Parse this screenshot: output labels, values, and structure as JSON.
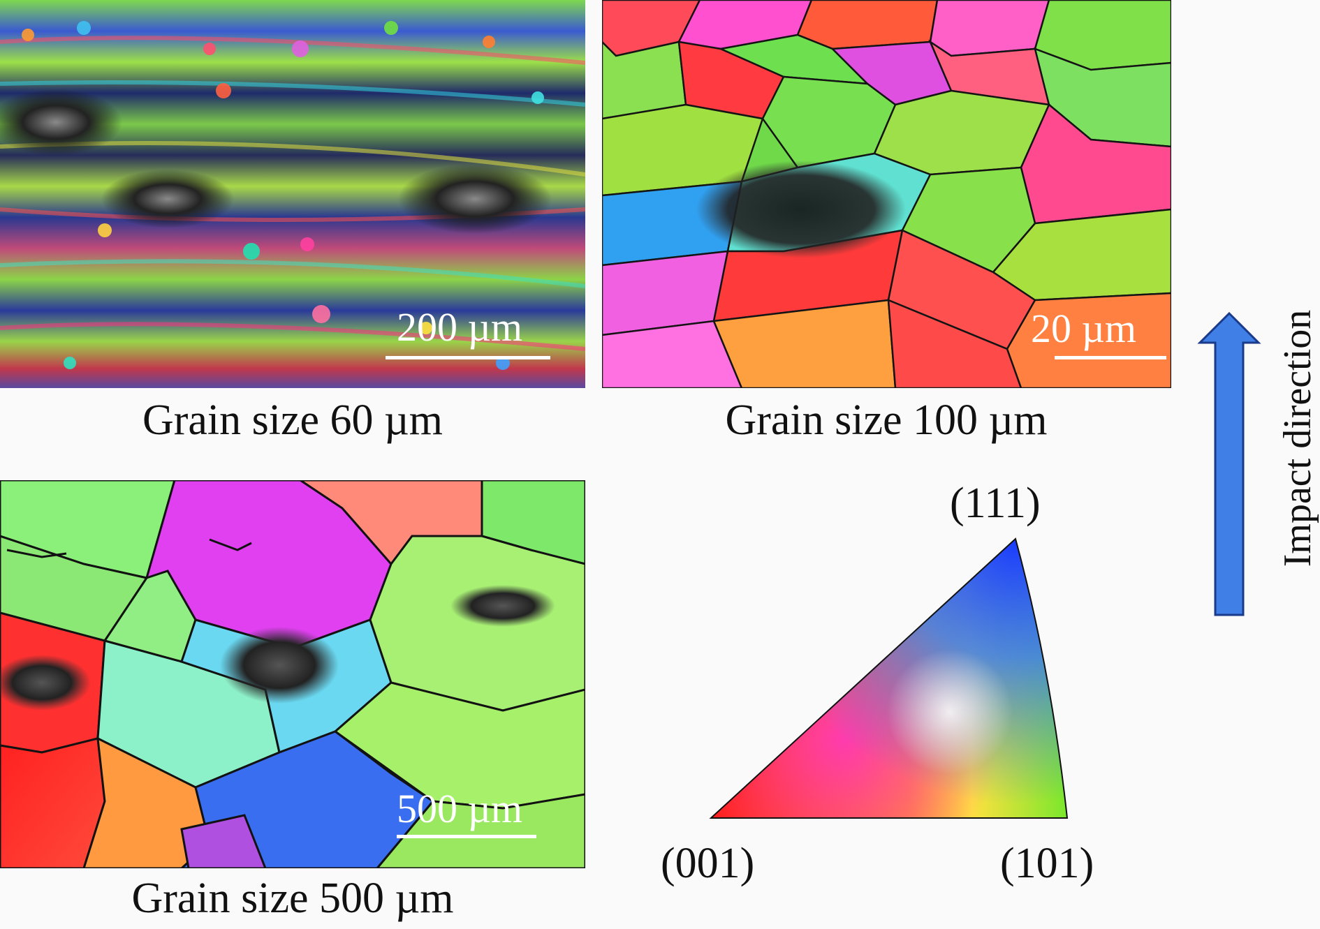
{
  "panels": {
    "fine": {
      "scale_label": "200 µm",
      "caption": "Grain size 60 µm"
    },
    "medium": {
      "scale_label": "20 µm",
      "caption": "Grain size 100 µm"
    },
    "coarse": {
      "scale_label": "500 µm",
      "caption": "Grain size 500 µm"
    }
  },
  "ipf_legend": {
    "label_111": "(111)",
    "label_001": "(001)",
    "label_101": "(101)"
  },
  "impact": {
    "label": "Impact direction",
    "arrow_color": "#3f7fe6"
  },
  "colors": {
    "red": "#ff2b2b",
    "green": "#7ee83a",
    "blue": "#2040e8",
    "magenta": "#e23cf0"
  }
}
